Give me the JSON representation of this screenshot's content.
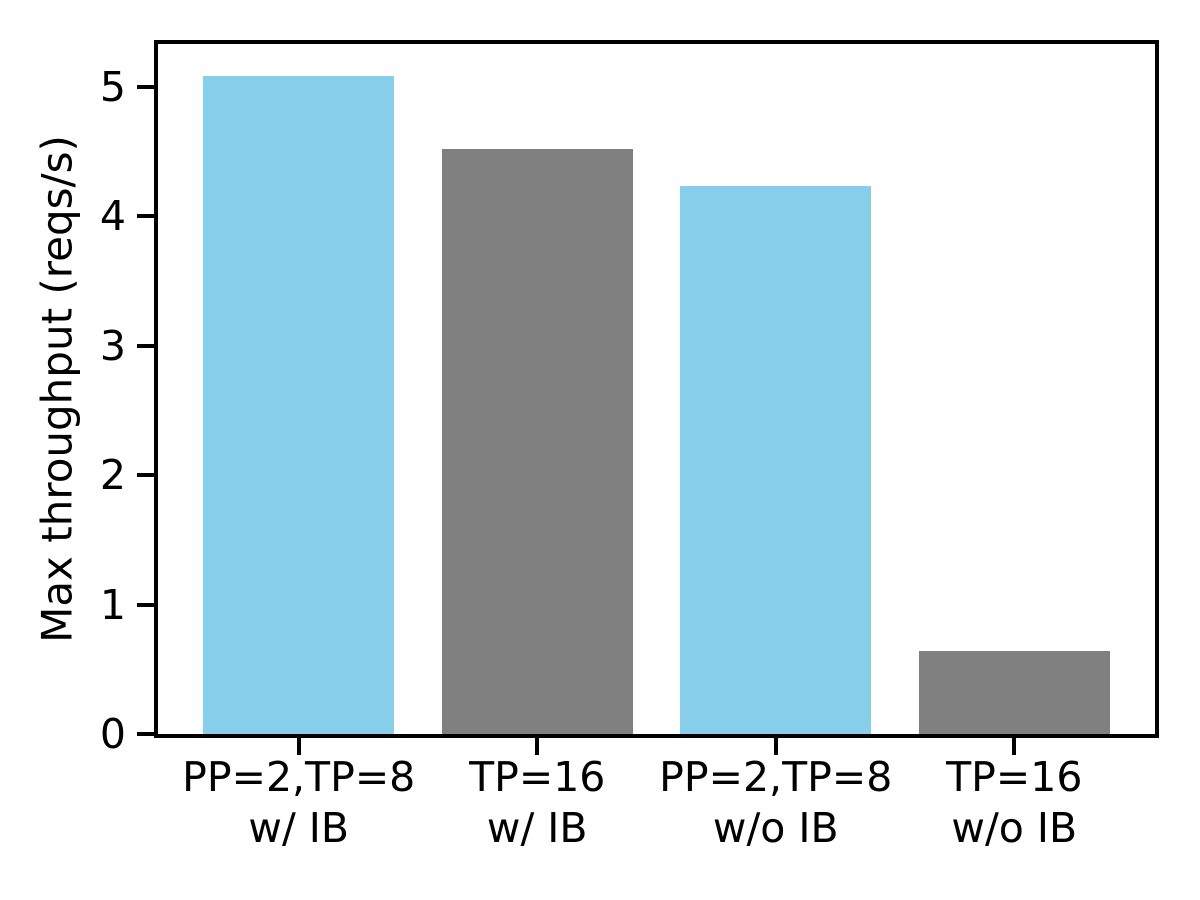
{
  "chart_data": {
    "type": "bar",
    "title": "",
    "xlabel": "",
    "ylabel": "Max throughput (reqs/s)",
    "categories": [
      [
        "PP=2,TP=8",
        "w/ IB"
      ],
      [
        "TP=16",
        "w/ IB"
      ],
      [
        "PP=2,TP=8",
        "w/o IB"
      ],
      [
        "TP=16",
        "w/o IB"
      ]
    ],
    "values": [
      5.08,
      4.52,
      4.23,
      0.64
    ],
    "bar_colors": [
      "#87ceeb",
      "#808080",
      "#87ceeb",
      "#808080"
    ],
    "yticks": [
      0,
      1,
      2,
      3,
      4,
      5
    ],
    "ylim": [
      0,
      5.33
    ],
    "xlim": [
      -0.59,
      3.59
    ],
    "bar_width": 0.8,
    "grid": false,
    "legend_position": "none",
    "axis_color": "#000000",
    "background_color": "#ffffff"
  }
}
